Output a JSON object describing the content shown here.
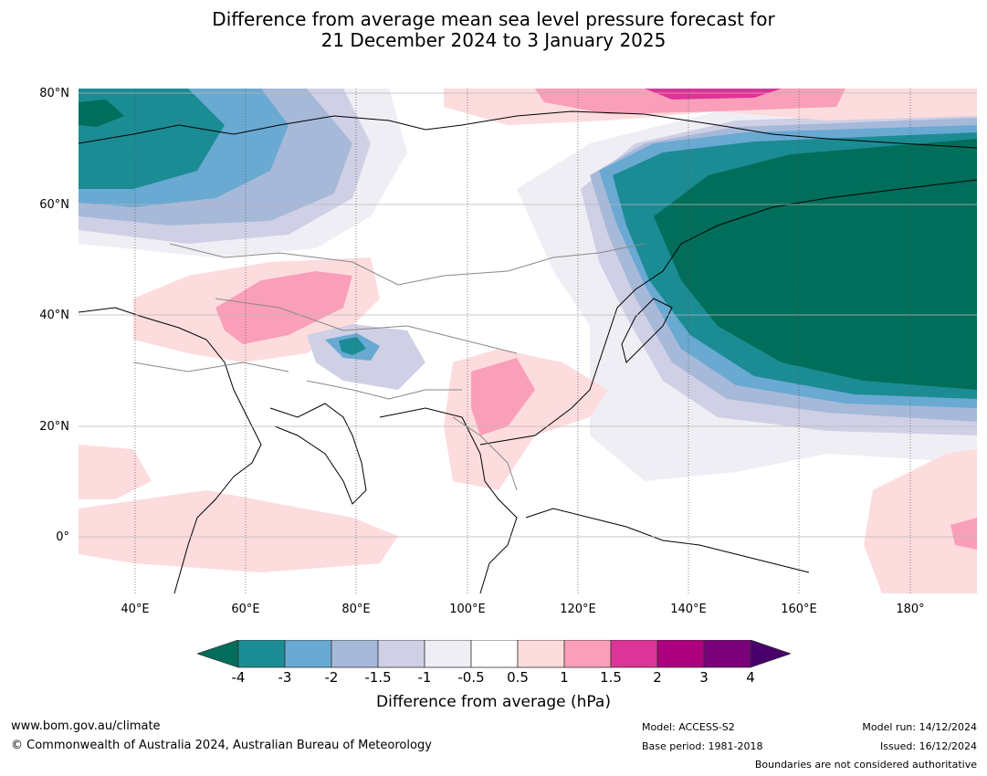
{
  "title": {
    "line1": "Difference from average mean sea level pressure forecast for",
    "line2": "21 December 2024 to 3 January 2025"
  },
  "axes": {
    "lat_labels": [
      "80°N",
      "60°N",
      "40°N",
      "20°N",
      "0°"
    ],
    "lon_labels": [
      "40°E",
      "60°E",
      "80°E",
      "100°E",
      "120°E",
      "140°E",
      "160°E",
      "180°"
    ]
  },
  "colorbar": {
    "label": "Difference from average (hPa)",
    "ticks": [
      "-4",
      "-3",
      "-2",
      "-1.5",
      "-1",
      "-0.5",
      "0.5",
      "1",
      "1.5",
      "2",
      "3",
      "4"
    ],
    "colors": {
      "below_-4": "#006e5a",
      "-4_-3": "#1b8c94",
      "-3_-2": "#69a9d2",
      "-2_-1.5": "#a7b9d9",
      "-1.5_-1": "#cfd0e5",
      "-1_-0.5": "#f0eef5",
      "-0.5_0.5": "#ffffff",
      "0.5_1": "#fddcdd",
      "1_1.5": "#f99fb9",
      "1.5_2": "#dd3497",
      "2_3": "#ae017e",
      "3_4": "#7a0177",
      "above_4": "#49006a"
    }
  },
  "footer": {
    "website": "www.bom.gov.au/climate",
    "copyright": "© Commonwealth of Australia 2024, Australian Bureau of Meteorology",
    "model": "Model: ACCESS-S2",
    "base_period": "Base period: 1981-2018",
    "model_run": "Model run: 14/12/2024",
    "issued": "Issued: 16/12/2024",
    "disclaimer": "Boundaries are not considered authoritative"
  }
}
